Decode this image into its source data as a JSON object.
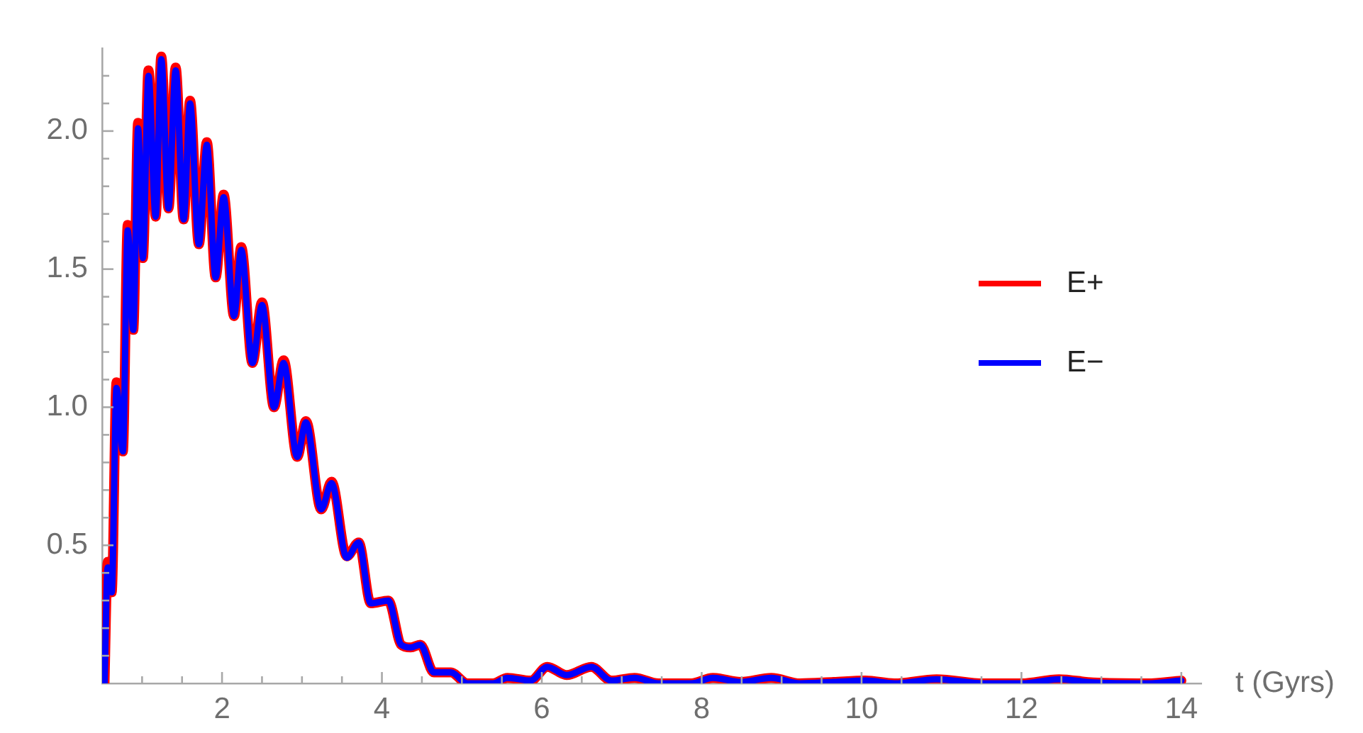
{
  "chart_data": {
    "type": "line",
    "xlabel": "t (Gyrs)",
    "legend": "right",
    "grid": false,
    "marker": "none",
    "line_style": "solid",
    "xlim": [
      0.5,
      14.25
    ],
    "ylim": [
      0,
      2.3
    ],
    "xticks": [
      {
        "value": 1,
        "label": null
      },
      {
        "value": 1.5,
        "label": null
      },
      2,
      {
        "value": 2.5,
        "label": null
      },
      {
        "value": 3,
        "label": null
      },
      {
        "value": 3.5,
        "label": null
      },
      4,
      {
        "value": 4.5,
        "label": null
      },
      {
        "value": 5,
        "label": null
      },
      {
        "value": 5.5,
        "label": null
      },
      6,
      {
        "value": 6.5,
        "label": null
      },
      {
        "value": 7,
        "label": null
      },
      {
        "value": 7.5,
        "label": null
      },
      8,
      {
        "value": 8.5,
        "label": null
      },
      {
        "value": 9,
        "label": null
      },
      {
        "value": 9.5,
        "label": null
      },
      10,
      {
        "value": 10.5,
        "label": null
      },
      {
        "value": 11,
        "label": null
      },
      {
        "value": 11.5,
        "label": null
      },
      12,
      {
        "value": 12.5,
        "label": null
      },
      {
        "value": 13,
        "label": null
      },
      {
        "value": 13.5,
        "label": null
      },
      14
    ],
    "yticks": [
      {
        "value": 0.1,
        "label": null
      },
      {
        "value": 0.2,
        "label": null
      },
      {
        "value": 0.3,
        "label": null
      },
      {
        "value": 0.4,
        "label": null
      },
      {
        "value": 0.5,
        "label": "0.5"
      },
      {
        "value": 0.6,
        "label": null
      },
      {
        "value": 0.7,
        "label": null
      },
      {
        "value": 0.8,
        "label": null
      },
      {
        "value": 0.9,
        "label": null
      },
      {
        "value": 1,
        "label": "1.0"
      },
      {
        "value": 1.1,
        "label": null
      },
      {
        "value": 1.2,
        "label": null
      },
      {
        "value": 1.3,
        "label": null
      },
      {
        "value": 1.4,
        "label": null
      },
      {
        "value": 1.5,
        "label": "1.5"
      },
      {
        "value": 1.6,
        "label": null
      },
      {
        "value": 1.7,
        "label": null
      },
      {
        "value": 1.8,
        "label": null
      },
      {
        "value": 1.9,
        "label": null
      },
      {
        "value": 2,
        "label": "2.0"
      },
      {
        "value": 2.1,
        "label": null
      },
      {
        "value": 2.2,
        "label": null
      }
    ],
    "x": [
      0.53,
      0.57,
      0.62,
      0.68,
      0.76,
      0.82,
      0.89,
      0.95,
      1.01,
      1.08,
      1.17,
      1.24,
      1.33,
      1.42,
      1.52,
      1.6,
      1.71,
      1.81,
      1.92,
      2.02,
      2.15,
      2.24,
      2.38,
      2.5,
      2.65,
      2.77,
      2.94,
      3.05,
      3.24,
      3.37,
      3.56,
      3.71,
      3.86,
      4.08,
      4.24,
      4.36,
      4.48,
      4.65,
      4.86,
      5.07,
      5.39,
      5.57,
      5.86,
      6.07,
      6.31,
      6.62,
      6.87,
      7.16,
      7.46,
      7.87,
      8.14,
      8.49,
      8.87,
      9.23,
      9.65,
      10.05,
      10.41,
      10.94,
      11.53,
      12,
      12.47,
      12.9,
      13.57,
      14
    ],
    "series": [
      {
        "name": "E+",
        "color": "#ff0000",
        "values": [
          0,
          0.44,
          0.33,
          1.09,
          0.84,
          1.66,
          1.28,
          2.03,
          1.54,
          2.22,
          1.69,
          2.27,
          1.72,
          2.23,
          1.68,
          2.11,
          1.59,
          1.96,
          1.47,
          1.77,
          1.33,
          1.58,
          1.16,
          1.38,
          1,
          1.17,
          0.82,
          0.95,
          0.63,
          0.73,
          0.46,
          0.51,
          0.29,
          0.3,
          0.14,
          0.13,
          0.14,
          0.04,
          0.04,
          0,
          0,
          0.02,
          0.01,
          0.06,
          0.03,
          0.06,
          0.01,
          0.02,
          0,
          0,
          0.02,
          0.005,
          0.02,
          0,
          0.005,
          0.01,
          0,
          0.015,
          0,
          0,
          0.015,
          0.003,
          0,
          0.01
        ]
      },
      {
        "name": "E−",
        "color": "#0000ff",
        "values": [
          0,
          0.42,
          0.33,
          1.07,
          0.84,
          1.64,
          1.28,
          2.01,
          1.54,
          2.2,
          1.69,
          2.26,
          1.72,
          2.22,
          1.68,
          2.1,
          1.59,
          1.95,
          1.47,
          1.76,
          1.33,
          1.57,
          1.16,
          1.37,
          1,
          1.16,
          0.82,
          0.945,
          0.63,
          0.725,
          0.455,
          0.51,
          0.29,
          0.3,
          0.14,
          0.13,
          0.14,
          0.04,
          0.04,
          0,
          0,
          0.02,
          0.01,
          0.06,
          0.03,
          0.06,
          0.01,
          0.02,
          0,
          0,
          0.02,
          0.005,
          0.02,
          0,
          0.005,
          0.01,
          0,
          0.015,
          0,
          0,
          0.015,
          0.003,
          0,
          0.01
        ]
      }
    ]
  }
}
